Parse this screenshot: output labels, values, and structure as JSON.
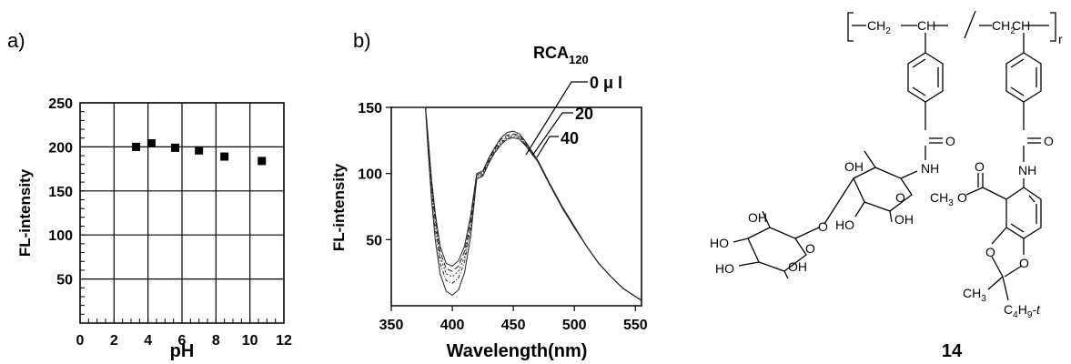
{
  "chart_data": [
    {
      "panel_label": "a)",
      "type": "scatter",
      "xlabel": "pH",
      "ylabel": "FL-intensity",
      "xlim": [
        0,
        12
      ],
      "ylim": [
        0,
        250
      ],
      "x_ticks": [
        "0",
        "2",
        "4",
        "6",
        "8",
        "10",
        "12"
      ],
      "y_ticks": [
        "50",
        "100",
        "150",
        "200",
        "250"
      ],
      "grid": true,
      "series": [
        {
          "x": [
            3.3,
            4.2,
            5.6,
            7.0,
            8.5,
            10.7
          ],
          "y": [
            200,
            204,
            199,
            196,
            189,
            184
          ]
        }
      ]
    },
    {
      "panel_label": "b)",
      "type": "line",
      "xlabel": "Wavelength(nm)",
      "ylabel": "FL-intensity",
      "xlim": [
        350,
        555
      ],
      "ylim": [
        0,
        150
      ],
      "x_ticks": [
        "350",
        "400",
        "450",
        "500",
        "550"
      ],
      "y_ticks": [
        "50",
        "100",
        "150"
      ],
      "legend_title": "RCA",
      "legend_title_sub": "120",
      "legend_entries": [
        "0 μ l",
        "20",
        "40"
      ],
      "series": [
        {
          "x": [
            352,
            356,
            358,
            362,
            372,
            378,
            380,
            383,
            386,
            390,
            395,
            400,
            405,
            410,
            415,
            420,
            425,
            430,
            435,
            440,
            445,
            450,
            455,
            460,
            470,
            480,
            490,
            500,
            510,
            520,
            530,
            540,
            550,
            555
          ],
          "y": [
            150,
            150,
            150,
            150,
            150,
            150,
            130,
            95,
            70,
            45,
            32,
            30,
            34,
            45,
            68,
            100,
            102,
            112,
            120,
            127,
            131,
            132,
            130,
            124,
            110,
            92,
            75,
            60,
            45,
            32,
            22,
            13,
            7,
            4
          ]
        },
        {
          "x": [
            352,
            356,
            358,
            362,
            372,
            378,
            380,
            383,
            386,
            390,
            395,
            400,
            405,
            410,
            415,
            420,
            425,
            430,
            435,
            440,
            445,
            450,
            455,
            460,
            470,
            480,
            490,
            500,
            510,
            520,
            530,
            540,
            550,
            555
          ],
          "y": [
            150,
            150,
            150,
            150,
            150,
            150,
            128,
            93,
            67,
            41,
            28,
            26,
            30,
            41,
            64,
            99,
            101,
            111,
            119,
            126,
            129,
            130,
            129,
            123,
            110,
            92,
            75,
            60,
            45,
            32,
            22,
            13,
            7,
            4
          ]
        },
        {
          "x": [
            352,
            356,
            358,
            362,
            372,
            378,
            380,
            383,
            386,
            390,
            395,
            400,
            405,
            410,
            415,
            420,
            425,
            430,
            435,
            440,
            445,
            450,
            455,
            460,
            470,
            480,
            490,
            500,
            510,
            520,
            530,
            540,
            550,
            555
          ],
          "y": [
            150,
            150,
            150,
            150,
            150,
            150,
            126,
            90,
            63,
            37,
            24,
            22,
            26,
            37,
            61,
            98,
            100,
            110,
            118,
            124,
            128,
            129,
            128,
            122,
            110,
            92,
            75,
            60,
            45,
            32,
            22,
            13,
            7,
            4
          ]
        },
        {
          "x": [
            352,
            356,
            358,
            362,
            372,
            378,
            380,
            383,
            386,
            390,
            395,
            400,
            405,
            410,
            415,
            420,
            425,
            430,
            435,
            440,
            445,
            450,
            455,
            460,
            470,
            480,
            490,
            500,
            510,
            520,
            530,
            540,
            550,
            555
          ],
          "y": [
            150,
            150,
            150,
            150,
            150,
            150,
            124,
            86,
            58,
            32,
            19,
            17,
            21,
            33,
            58,
            97,
            99,
            109,
            117,
            123,
            127,
            128,
            127,
            122,
            109,
            91,
            75,
            60,
            45,
            32,
            22,
            13,
            7,
            4
          ]
        },
        {
          "x": [
            352,
            356,
            358,
            362,
            372,
            378,
            380,
            383,
            386,
            390,
            395,
            400,
            405,
            410,
            415,
            420,
            425,
            430,
            435,
            440,
            445,
            450,
            455,
            460,
            470,
            480,
            490,
            500,
            510,
            520,
            530,
            540,
            550,
            555
          ],
          "y": [
            150,
            150,
            150,
            150,
            150,
            150,
            120,
            80,
            50,
            24,
            11,
            8,
            12,
            25,
            52,
            96,
            98,
            108,
            116,
            122,
            126,
            127,
            126,
            121,
            109,
            91,
            74,
            59,
            45,
            32,
            22,
            13,
            7,
            4
          ]
        }
      ]
    }
  ],
  "structure": {
    "compound_number": "14",
    "subscript_r": "r",
    "backbone_left": "CH",
    "backbone_left_sub": "2",
    "backbone_left_ch": "CH",
    "backbone_right": "CH",
    "backbone_right_sub": "2",
    "backbone_right_ch": "CH",
    "carbonyl_o_left": "O",
    "carbonyl_o_right": "O",
    "nh_left": "NH",
    "nh_right": "NH",
    "ester_o_top": "O",
    "ester_o_single": "O",
    "ester_ch3": "CH",
    "ester_ch3_sub": "3",
    "ring_o_upper": "O",
    "ring_o_lower": "O",
    "acetal_ch3": "CH",
    "acetal_ch3_sub": "3",
    "acetal_tbu_c": "C",
    "acetal_tbu_sub": "4",
    "acetal_tbu_h": "H",
    "acetal_tbu_sub2": "9",
    "acetal_tbu_t": "-t",
    "sugar_oh": [
      "OH",
      "HO",
      "OH",
      "OH",
      "HO",
      "HO",
      "OH",
      "O",
      "O",
      "O"
    ]
  }
}
